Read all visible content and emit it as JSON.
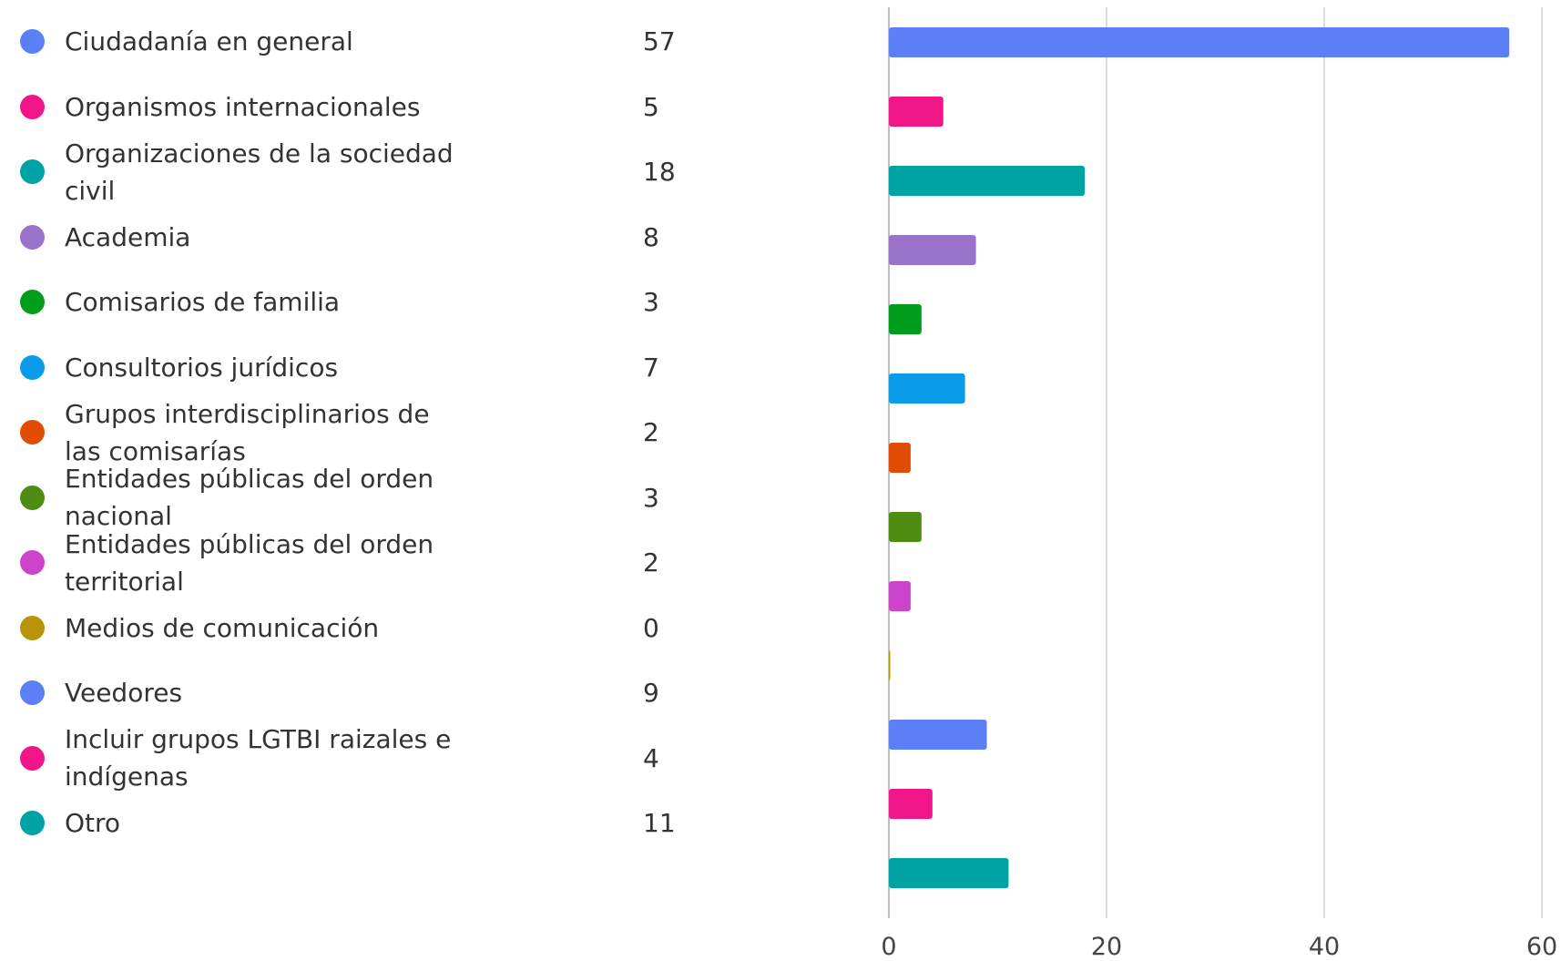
{
  "chart_data": {
    "type": "bar",
    "orientation": "horizontal",
    "title": "",
    "xlabel": "",
    "ylabel": "",
    "xlim": [
      0,
      60
    ],
    "x_ticks": [
      "0",
      "20",
      "40",
      "60"
    ],
    "grid": true,
    "legend_position": "left",
    "categories": [
      "Ciudadanía en general",
      "Organismos internacionales",
      "Organizaciones de la sociedad civil",
      "Academia",
      "Comisarios de familia",
      "Consultorios jurídicos",
      "Grupos interdisciplinarios de las comisarías",
      "Entidades públicas del orden nacional",
      "Entidades públicas del orden territorial",
      "Medios de comunicación",
      "Veedores",
      "Incluir grupos LGTBI raizales e indígenas",
      "Otro"
    ],
    "values": [
      57,
      5,
      18,
      8,
      3,
      7,
      2,
      3,
      2,
      0,
      9,
      4,
      11
    ],
    "value_labels": [
      "57",
      "5",
      "18",
      "8",
      "3",
      "7",
      "2",
      "3",
      "2",
      "0",
      "9",
      "4",
      "11"
    ],
    "colors": [
      "#5b7ff5",
      "#f0168a",
      "#00a3a3",
      "#9b72c9",
      "#009d1a",
      "#0b9be8",
      "#e04c04",
      "#4e8d12",
      "#cc44cc",
      "#b8930b",
      "#5b7ff5",
      "#f0168a",
      "#00a3a3"
    ]
  }
}
